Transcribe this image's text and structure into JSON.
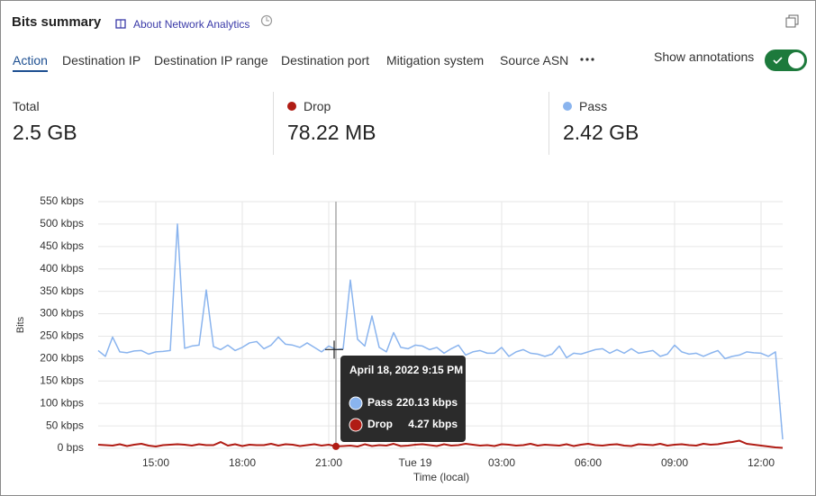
{
  "header": {
    "title": "Bits summary",
    "link": "About Network Analytics"
  },
  "tabs": [
    "Action",
    "Destination IP",
    "Destination IP range",
    "Destination port",
    "Mitigation system",
    "Source ASN"
  ],
  "toggle_label": "Show annotations",
  "summary": [
    {
      "label": "Total",
      "value": "2.5 GB"
    },
    {
      "label": "Drop",
      "value": "78.22 MB"
    },
    {
      "label": "Pass",
      "value": "2.42 GB"
    }
  ],
  "chart_data": {
    "type": "line",
    "y_label": "Bits",
    "x_label": "Time (local)",
    "x": [
      13,
      13.25,
      13.5,
      13.75,
      14,
      14.25,
      14.5,
      14.75,
      15,
      15.25,
      15.5,
      15.75,
      16,
      16.25,
      16.5,
      16.75,
      17,
      17.25,
      17.5,
      17.75,
      18,
      18.25,
      18.5,
      18.75,
      19,
      19.25,
      19.5,
      19.75,
      20,
      20.25,
      20.5,
      20.75,
      21,
      21.25,
      21.5,
      21.75,
      22,
      22.25,
      22.5,
      22.75,
      23,
      23.25,
      23.5,
      23.75,
      24,
      24.25,
      24.5,
      24.75,
      25,
      25.25,
      25.5,
      25.75,
      26,
      26.25,
      26.5,
      26.75,
      27,
      27.25,
      27.5,
      27.75,
      28,
      28.25,
      28.5,
      28.75,
      29,
      29.25,
      29.5,
      29.75,
      30,
      30.25,
      30.5,
      30.75,
      31,
      31.25,
      31.5,
      31.75,
      32,
      32.25,
      32.5,
      32.75,
      33,
      33.25,
      33.5,
      33.75,
      34,
      34.25,
      34.5,
      34.75,
      35,
      35.25,
      35.5,
      35.75,
      36,
      36.25,
      36.5,
      36.75
    ],
    "series": [
      {
        "name": "Pass",
        "color": "#8ab4ee",
        "values": [
          218,
          205,
          248,
          215,
          213,
          217,
          218,
          210,
          215,
          216,
          218,
          500,
          223,
          228,
          230,
          353,
          227,
          220,
          230,
          218,
          225,
          235,
          238,
          222,
          230,
          248,
          232,
          230,
          225,
          235,
          225,
          215,
          228,
          220.13,
          222,
          375,
          243,
          228,
          295,
          225,
          215,
          258,
          225,
          222,
          230,
          228,
          220,
          225,
          212,
          222,
          230,
          208,
          215,
          218,
          212,
          212,
          225,
          205,
          215,
          220,
          212,
          210,
          205,
          210,
          228,
          202,
          212,
          210,
          215,
          220,
          222,
          212,
          220,
          212,
          222,
          212,
          215,
          218,
          205,
          210,
          230,
          215,
          210,
          212,
          205,
          212,
          218,
          200,
          205,
          208,
          215,
          213,
          212,
          205,
          215,
          20
        ]
      },
      {
        "name": "Drop",
        "color": "#b01c14",
        "values": [
          8,
          7,
          6,
          9,
          5,
          8,
          10,
          6,
          4,
          7,
          8,
          9,
          8,
          6,
          9,
          7,
          7,
          14,
          6,
          9,
          5,
          8,
          7,
          7,
          10,
          6,
          9,
          8,
          5,
          7,
          9,
          6,
          8,
          4.27,
          5,
          6,
          4,
          9,
          5,
          7,
          6,
          10,
          5,
          6,
          8,
          9,
          7,
          5,
          9,
          6,
          7,
          10,
          8,
          6,
          7,
          5,
          9,
          8,
          6,
          7,
          10,
          6,
          8,
          7,
          6,
          9,
          5,
          8,
          10,
          7,
          6,
          8,
          9,
          6,
          5,
          9,
          8,
          7,
          10,
          6,
          8,
          9,
          7,
          6,
          10,
          8,
          9,
          12,
          14,
          17,
          10,
          8,
          6,
          4,
          2,
          1
        ]
      }
    ],
    "xlim": [
      13,
      36.75
    ],
    "xticks": [
      {
        "value": 15,
        "label": "15:00"
      },
      {
        "value": 18,
        "label": "18:00"
      },
      {
        "value": 21,
        "label": "21:00"
      },
      {
        "value": 24,
        "label": "Tue 19"
      },
      {
        "value": 27,
        "label": "03:00"
      },
      {
        "value": 30,
        "label": "06:00"
      },
      {
        "value": 33,
        "label": "09:00"
      },
      {
        "value": 36,
        "label": "12:00"
      }
    ],
    "ylim": [
      0,
      550
    ],
    "yticks": [
      {
        "value": 0,
        "label": "0 bps"
      },
      {
        "value": 50,
        "label": "50 kbps"
      },
      {
        "value": 100,
        "label": "100 kbps"
      },
      {
        "value": 150,
        "label": "150 kbps"
      },
      {
        "value": 200,
        "label": "200 kbps"
      },
      {
        "value": 250,
        "label": "250 kbps"
      },
      {
        "value": 300,
        "label": "300 kbps"
      },
      {
        "value": 350,
        "label": "350 kbps"
      },
      {
        "value": 400,
        "label": "400 kbps"
      },
      {
        "value": 450,
        "label": "450 kbps"
      },
      {
        "value": 500,
        "label": "500 kbps"
      },
      {
        "value": 550,
        "label": "550 kbps"
      }
    ],
    "grid": true
  },
  "tooltip": {
    "title": "April 18, 2022 9:15 PM",
    "index": 33,
    "rows": [
      {
        "name": "Pass",
        "value": "220.13 kbps"
      },
      {
        "name": "Drop",
        "value": "4.27 kbps"
      }
    ]
  }
}
